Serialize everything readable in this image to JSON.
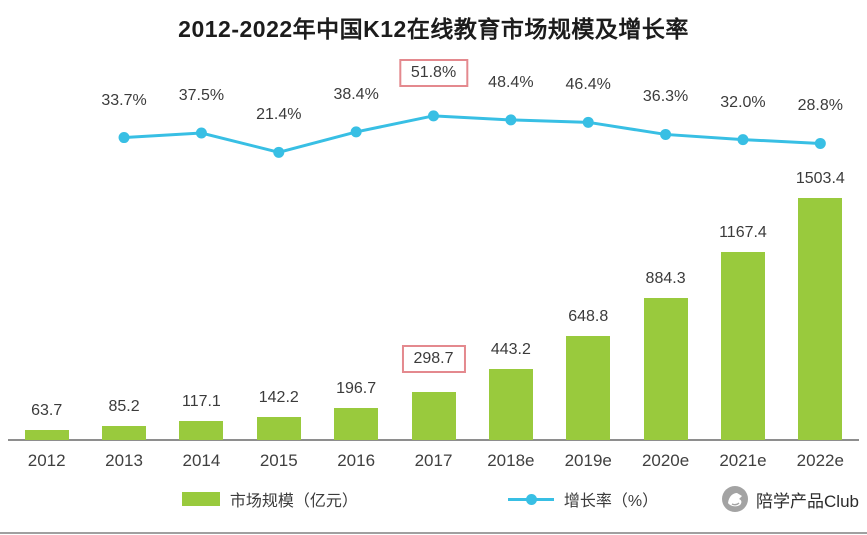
{
  "title": "2012-2022年中国K12在线教育市场规模及增长率",
  "chart_data": {
    "type": "bar",
    "subtype": "bar-line-combo",
    "categories": [
      "2012",
      "2013",
      "2014",
      "2015",
      "2016",
      "2017",
      "2018e",
      "2019e",
      "2020e",
      "2021e",
      "2022e"
    ],
    "series": [
      {
        "name": "市场规模（亿元）",
        "type": "bar",
        "color": "#99ca3d",
        "values": [
          63.7,
          85.2,
          117.1,
          142.2,
          196.7,
          298.7,
          443.2,
          648.8,
          884.3,
          1167.4,
          1503.4
        ],
        "highlight_index": 5
      },
      {
        "name": "增长率（%）",
        "type": "line",
        "color": "#38bfe4",
        "x_start_index": 1,
        "values": [
          33.7,
          37.5,
          21.4,
          38.4,
          51.8,
          48.4,
          46.4,
          36.3,
          32.0,
          28.8
        ],
        "highlight_index": 4
      }
    ],
    "highlight_box_color": "#e4898e",
    "value_labels_visible": true,
    "ylim_bar": [
      0,
      1600
    ],
    "ylim_line_percent": [
      0,
      60
    ],
    "legend_position": "bottom"
  },
  "watermark": {
    "text": "陪学产品Club"
  }
}
